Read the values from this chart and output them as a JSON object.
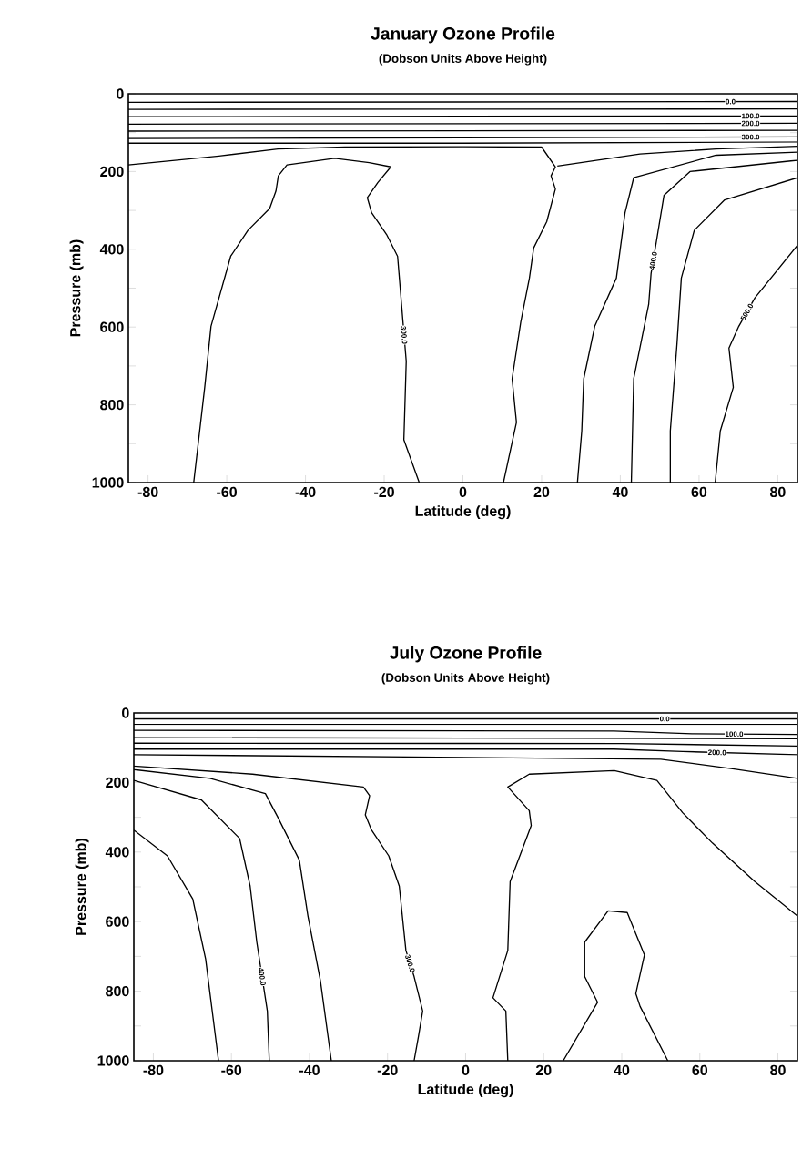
{
  "chart_data": [
    {
      "type": "line",
      "title": "January Ozone Profile",
      "subtitle": "(Dobson Units Above Height)",
      "xlabel": "Latitude (deg)",
      "ylabel": "Pressure (mb)",
      "xlim": [
        -85,
        85
      ],
      "ylim": [
        1000,
        0
      ],
      "xticks": [
        -80,
        -60,
        -40,
        -20,
        0,
        20,
        40,
        60,
        80
      ],
      "yticks": [
        0,
        {
          "value": 100,
          "label": null
        },
        200,
        {
          "value": 300,
          "label": null
        },
        400,
        {
          "value": 500,
          "label": null
        },
        600,
        {
          "value": 700,
          "label": null
        },
        800,
        {
          "value": 900,
          "label": null
        },
        1000
      ],
      "series": [
        {
          "name": "0.0",
          "color": "#000000",
          "x": [
            -85,
            85
          ],
          "values": [
            22,
            20
          ]
        },
        {
          "color": "#000000",
          "x": [
            -85,
            85
          ],
          "values": [
            40,
            39
          ]
        },
        {
          "name": "100.0",
          "color": "#000000",
          "x": [
            -85,
            85
          ],
          "values": [
            59,
            57
          ]
        },
        {
          "name": "200.0",
          "color": "#000000",
          "x": [
            -85,
            85
          ],
          "values": [
            78,
            76
          ]
        },
        {
          "color": "#000000",
          "x": [
            -85,
            85
          ],
          "values": [
            96,
            94
          ]
        },
        {
          "name": "300.0",
          "color": "#000000",
          "x": [
            -85,
            85
          ],
          "values": [
            115,
            111
          ]
        },
        {
          "color": "#000000",
          "x": [
            -85,
            0,
            85
          ],
          "values": [
            127,
            127,
            124
          ]
        },
        {
          "color": "#000000",
          "x": [
            -85,
            -72,
            -62,
            -47,
            -30,
            0,
            20,
            23.5,
            22.4,
            23.5,
            21.3,
            18,
            16.9,
            14.7,
            12.5,
            13.6,
            10.3
          ],
          "values": [
            183,
            170,
            160,
            142,
            137,
            136,
            137,
            188,
            211,
            245,
            329,
            396,
            474,
            587,
            733,
            845,
            1000
          ]
        },
        {
          "color": "#000000",
          "x": [
            24,
            45,
            64.3,
            85
          ],
          "values": [
            186,
            155,
            142,
            135
          ]
        },
        {
          "name": "300.0",
          "color": "#000000",
          "x": [
            -68.4,
            -65.6,
            -64,
            -59,
            -54.6,
            -49.1,
            -47.5,
            -46.9,
            -44.7,
            -32.6,
            -23.8,
            -18.3,
            -21.6,
            -24.3,
            -23.2,
            -19.4,
            -16.6,
            -15.5,
            -14.4,
            -15,
            -11.1
          ],
          "values": [
            1000,
            755,
            598,
            418,
            351,
            295,
            250,
            211,
            183,
            166,
            177,
            188,
            228,
            267,
            306,
            362,
            418,
            553,
            688,
            890,
            1000
          ]
        },
        {
          "color": "#000000",
          "x": [
            85,
            64.3,
            43.4,
            41.2,
            39,
            33.5,
            30.7,
            30.2,
            29.1
          ],
          "values": [
            150,
            158,
            216,
            306,
            474,
            598,
            733,
            867,
            1000
          ]
        },
        {
          "name": "400.0",
          "color": "#000000",
          "x": [
            85,
            57.7,
            51.1,
            48.9,
            47.8,
            47.2,
            43.4,
            42.8
          ],
          "values": [
            171,
            200,
            261,
            396,
            463,
            542,
            733,
            1000
          ]
        },
        {
          "color": "#000000",
          "x": [
            85,
            66.5,
            58.8,
            55.5,
            54.4,
            52.7,
            52.7
          ],
          "values": [
            216,
            273,
            351,
            474,
            643,
            867,
            1000
          ]
        },
        {
          "name": "500.0",
          "color": "#000000",
          "x": [
            85,
            74.2,
            70.1,
            67.6,
            68.7,
            65.4,
            64.1
          ],
          "values": [
            390,
            525,
            598,
            654,
            755,
            867,
            1000
          ]
        }
      ]
    },
    {
      "type": "line",
      "title": "July Ozone Profile",
      "subtitle": "(Dobson Units Above Height)",
      "xlabel": "Latitude (deg)",
      "ylabel": "Pressure (mb)",
      "xlim": [
        -85,
        85
      ],
      "ylim": [
        1000,
        0
      ],
      "xticks": [
        -80,
        -60,
        -40,
        -20,
        0,
        20,
        40,
        60,
        80
      ],
      "yticks": [
        0,
        {
          "value": 100,
          "label": null
        },
        200,
        {
          "value": 300,
          "label": null
        },
        400,
        {
          "value": 500,
          "label": null
        },
        600,
        {
          "value": 700,
          "label": null
        },
        800,
        {
          "value": 900,
          "label": null
        },
        1000
      ],
      "series": [
        {
          "name": "0.0",
          "color": "#000000",
          "x": [
            -85,
            85
          ],
          "values": [
            17,
            17
          ]
        },
        {
          "color": "#000000",
          "x": [
            -85,
            85
          ],
          "values": [
            33,
            33
          ]
        },
        {
          "name": "100.0",
          "color": "#000000",
          "x": [
            -85,
            38,
            58,
            85
          ],
          "values": [
            50,
            52,
            60,
            62
          ]
        },
        {
          "color": "#000000",
          "x": [
            -85,
            85
          ],
          "values": [
            71,
            74
          ]
        },
        {
          "color": "#000000",
          "x": [
            -85,
            40,
            85
          ],
          "values": [
            87,
            88,
            95
          ]
        },
        {
          "name": "200.0",
          "color": "#000000",
          "x": [
            -85,
            38,
            55.6,
            85
          ],
          "values": [
            104,
            104,
            111,
            120
          ]
        },
        {
          "color": "#000000",
          "x": [
            -85,
            50,
            68,
            85
          ],
          "values": [
            120,
            133,
            160,
            188
          ]
        },
        {
          "name": "300.0",
          "color": "#000000",
          "x": [
            -85,
            -54.6,
            -26.2,
            -24.6,
            -25.7,
            -24.1,
            -19.7,
            -17,
            -15.3,
            -13.2,
            -11,
            -12.1,
            -13.2
          ],
          "values": [
            153,
            176,
            213,
            238,
            293,
            337,
            411,
            498,
            683,
            758,
            857,
            931,
            1000
          ]
        },
        {
          "color": "#000000",
          "x": [
            -85,
            -76.4,
            -69.9,
            -66.6,
            -63.3
          ],
          "values": [
            337,
            411,
            535,
            708,
            1000
          ]
        },
        {
          "name": "400.0",
          "color": "#000000",
          "x": [
            -85,
            -67.7,
            -57.9,
            -55.2,
            -53.5,
            -50.8,
            -50.3
          ],
          "values": [
            194,
            250,
            361,
            498,
            659,
            857,
            1000
          ]
        },
        {
          "color": "#000000",
          "x": [
            -85,
            -65.5,
            -51.3,
            -48.1,
            -42.6,
            -40.4,
            -37.2,
            -34.4
          ],
          "values": [
            163,
            188,
            232,
            300,
            423,
            584,
            770,
            1000
          ]
        },
        {
          "color": "#000000",
          "x": [
            85,
            74.1,
            63.2,
            55.6,
            49,
            38.1,
            16.3,
            10.8,
            16.3,
            16.8,
            11.4,
            10.8,
            7,
            10.3,
            10.8
          ],
          "values": [
            584,
            485,
            374,
            287,
            194,
            166,
            176,
            213,
            281,
            324,
            485,
            683,
            819,
            857,
            1000
          ]
        },
        {
          "color": "#000000",
          "x": [
            25,
            33.8,
            30.5,
            30.5,
            36.5,
            41.4,
            45.8,
            43.6,
            44.7,
            51.8
          ],
          "values": [
            1000,
            832,
            758,
            659,
            569,
            574,
            696,
            807,
            844,
            1000
          ]
        }
      ]
    }
  ]
}
